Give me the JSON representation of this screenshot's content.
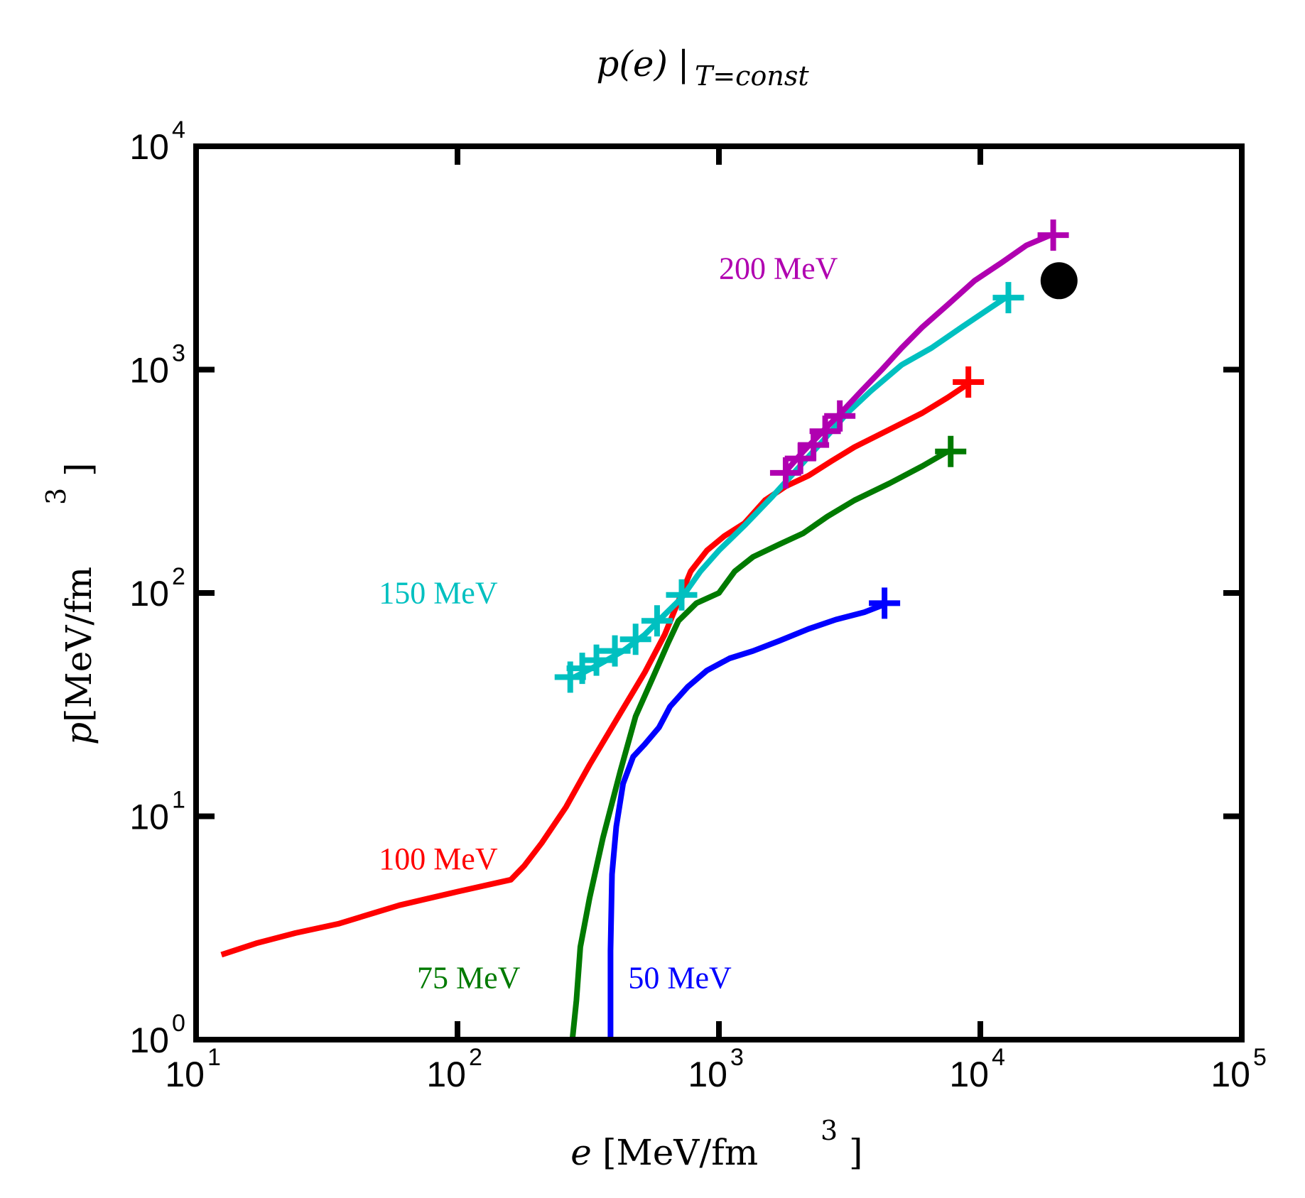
{
  "chart_data": {
    "type": "line",
    "title": {
      "main": "p(e)",
      "bar": "|",
      "sub": "T=const"
    },
    "xlabel": {
      "var": "e",
      "unit": "[MeV/fm",
      "exp": "3",
      "close": "]"
    },
    "ylabel": {
      "var": "p",
      "unit": "[MeV/fm",
      "exp": "3",
      "close": "]"
    },
    "xscale": "log",
    "yscale": "log",
    "xlim": [
      10,
      100000
    ],
    "ylim": [
      1,
      10000
    ],
    "xticks": [
      {
        "value": 10,
        "base": "10",
        "exp": "1"
      },
      {
        "value": 100,
        "base": "10",
        "exp": "2"
      },
      {
        "value": 1000,
        "base": "10",
        "exp": "3"
      },
      {
        "value": 10000,
        "base": "10",
        "exp": "4"
      },
      {
        "value": 100000,
        "base": "10",
        "exp": "5"
      }
    ],
    "yticks": [
      {
        "value": 1,
        "base": "10",
        "exp": "0"
      },
      {
        "value": 10,
        "base": "10",
        "exp": "1"
      },
      {
        "value": 100,
        "base": "10",
        "exp": "2"
      },
      {
        "value": 1000,
        "base": "10",
        "exp": "3"
      },
      {
        "value": 10000,
        "base": "10",
        "exp": "4"
      }
    ],
    "series": [
      {
        "name": "100 MeV",
        "color": "#ff0000",
        "label_pos": [
          50,
          5.8
        ],
        "points": [
          [
            12.5,
            2.4
          ],
          [
            17,
            2.7
          ],
          [
            24,
            3.0
          ],
          [
            35,
            3.3
          ],
          [
            60,
            4.0
          ],
          [
            100,
            4.6
          ],
          [
            160,
            5.2
          ],
          [
            180,
            6.0
          ],
          [
            210,
            7.6
          ],
          [
            260,
            11.0
          ],
          [
            320,
            17
          ],
          [
            420,
            29
          ],
          [
            520,
            44
          ],
          [
            620,
            65
          ],
          [
            700,
            92
          ],
          [
            780,
            125
          ],
          [
            900,
            155
          ],
          [
            1050,
            180
          ],
          [
            1250,
            205
          ],
          [
            1500,
            260
          ],
          [
            1800,
            300
          ],
          [
            2200,
            335
          ],
          [
            2700,
            390
          ],
          [
            3300,
            450
          ],
          [
            4500,
            540
          ],
          [
            6000,
            640
          ],
          [
            7500,
            750
          ],
          [
            8800,
            850
          ]
        ],
        "markers": [
          [
            9000,
            880
          ]
        ]
      },
      {
        "name": "75 MeV",
        "color": "#007a00",
        "label_pos": [
          70,
          1.7
        ],
        "points": [
          [
            275,
            1.0
          ],
          [
            285,
            1.5
          ],
          [
            295,
            2.6
          ],
          [
            320,
            4.3
          ],
          [
            360,
            8.0
          ],
          [
            420,
            16
          ],
          [
            480,
            28
          ],
          [
            560,
            42
          ],
          [
            640,
            60
          ],
          [
            700,
            75
          ],
          [
            820,
            90
          ],
          [
            1000,
            100
          ],
          [
            1150,
            125
          ],
          [
            1350,
            145
          ],
          [
            1700,
            165
          ],
          [
            2100,
            185
          ],
          [
            2600,
            220
          ],
          [
            3300,
            260
          ],
          [
            4500,
            310
          ],
          [
            6000,
            370
          ],
          [
            7500,
            430
          ]
        ],
        "markers": [
          [
            7700,
            430
          ]
        ]
      },
      {
        "name": "50 MeV",
        "color": "#0000ff",
        "label_pos": [
          450,
          1.7
        ],
        "points": [
          [
            385,
            1.0
          ],
          [
            385,
            2.5
          ],
          [
            390,
            5.5
          ],
          [
            405,
            9.0
          ],
          [
            430,
            14
          ],
          [
            470,
            18.5
          ],
          [
            520,
            21
          ],
          [
            590,
            25
          ],
          [
            650,
            31
          ],
          [
            760,
            38
          ],
          [
            900,
            45
          ],
          [
            1100,
            51
          ],
          [
            1350,
            55
          ],
          [
            1700,
            61
          ],
          [
            2200,
            69
          ],
          [
            2800,
            76
          ],
          [
            3600,
            82
          ],
          [
            4200,
            88
          ]
        ],
        "markers": [
          [
            4300,
            90
          ]
        ]
      },
      {
        "name": "150 MeV",
        "color": "#00c0c0",
        "label_pos": [
          50,
          90
        ],
        "points": [
          [
            280,
            42
          ],
          [
            350,
            48
          ],
          [
            430,
            55
          ],
          [
            520,
            65
          ],
          [
            620,
            80
          ],
          [
            720,
            95
          ],
          [
            850,
            125
          ],
          [
            1000,
            155
          ],
          [
            1250,
            200
          ],
          [
            1600,
            270
          ],
          [
            2000,
            360
          ],
          [
            2500,
            480
          ],
          [
            3100,
            640
          ],
          [
            3800,
            800
          ],
          [
            5000,
            1050
          ],
          [
            6500,
            1250
          ],
          [
            8500,
            1550
          ],
          [
            11000,
            1900
          ],
          [
            12500,
            2100
          ]
        ],
        "markers": [
          [
            270,
            42
          ],
          [
            300,
            46
          ],
          [
            340,
            50
          ],
          [
            400,
            55
          ],
          [
            480,
            62
          ],
          [
            580,
            75
          ],
          [
            720,
            98
          ],
          [
            12800,
            2100
          ]
        ]
      },
      {
        "name": "200 MeV",
        "color": "#b000b0",
        "label_pos": [
          1000,
          2550
        ],
        "points": [
          [
            1800,
            350
          ],
          [
            2100,
            430
          ],
          [
            2500,
            530
          ],
          [
            3000,
            660
          ],
          [
            3500,
            800
          ],
          [
            4200,
            1000
          ],
          [
            5000,
            1250
          ],
          [
            6000,
            1550
          ],
          [
            7500,
            1950
          ],
          [
            9500,
            2500
          ],
          [
            12000,
            3000
          ],
          [
            15000,
            3600
          ],
          [
            18500,
            4000
          ]
        ],
        "markers": [
          [
            1800,
            345
          ],
          [
            2050,
            400
          ],
          [
            2300,
            460
          ],
          [
            2550,
            530
          ],
          [
            2900,
            620
          ],
          [
            19000,
            4000
          ]
        ]
      }
    ],
    "points_extra": [
      {
        "name": "black dot",
        "color": "#000000",
        "x": 20000,
        "y": 2500
      }
    ]
  }
}
